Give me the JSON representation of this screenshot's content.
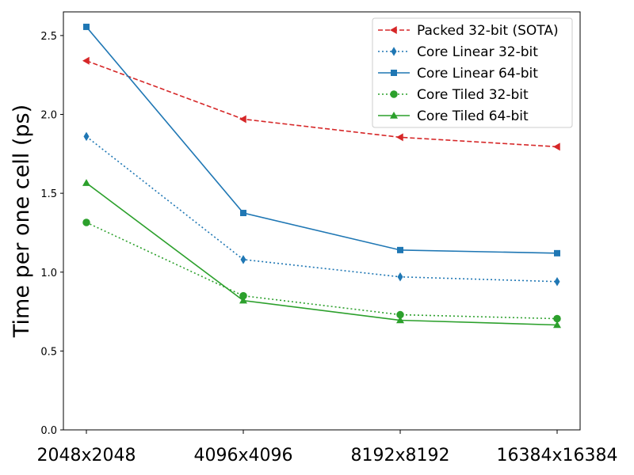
{
  "chart_data": {
    "type": "line",
    "title": "",
    "xlabel": "",
    "ylabel": "Time per one cell (ps)",
    "categories": [
      "2048x2048",
      "4096x4096",
      "8192x8192",
      "16384x16384"
    ],
    "ylim": [
      0,
      2.65
    ],
    "yticks": [
      "0.0",
      "0.5",
      "1.0",
      "1.5",
      "2.0",
      "2.5"
    ],
    "grid": false,
    "legend_position": "top-right",
    "series": [
      {
        "name": "Packed 32-bit (SOTA)",
        "values": [
          2.34,
          1.97,
          1.855,
          1.795
        ],
        "color": "#d62728",
        "line_style": "dashed",
        "marker": "triangle-left"
      },
      {
        "name": "Core Linear 32-bit",
        "values": [
          1.86,
          1.08,
          0.97,
          0.94
        ],
        "color": "#1f77b4",
        "line_style": "dotted",
        "marker": "diamond"
      },
      {
        "name": "Core Linear 64-bit",
        "values": [
          2.555,
          1.375,
          1.14,
          1.12
        ],
        "color": "#1f77b4",
        "line_style": "solid",
        "marker": "square"
      },
      {
        "name": "Core Tiled 32-bit",
        "values": [
          1.315,
          0.85,
          0.73,
          0.705
        ],
        "color": "#2ca02c",
        "line_style": "dotted",
        "marker": "circle"
      },
      {
        "name": "Core Tiled 64-bit",
        "values": [
          1.565,
          0.82,
          0.695,
          0.665
        ],
        "color": "#2ca02c",
        "line_style": "solid",
        "marker": "triangle-up"
      }
    ]
  }
}
